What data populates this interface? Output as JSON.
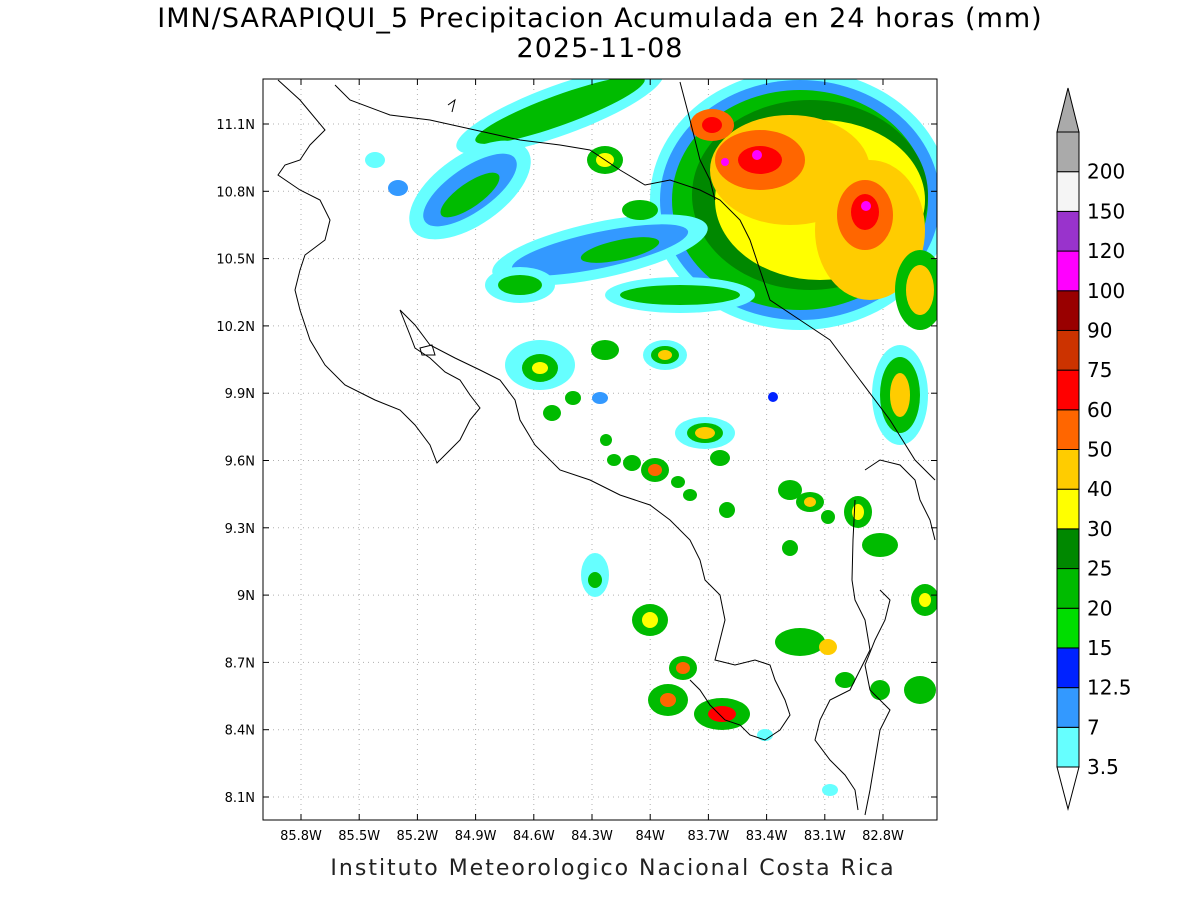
{
  "title": "IMN/SARAPIQUI_5 Precipitacion Acumulada en 24 horas (mm)",
  "date": "2025-11-08",
  "footer": "Instituto Meteorologico Nacional Costa Rica",
  "lat_labels": [
    "11.1N",
    "10.8N",
    "10.5N",
    "10.2N",
    "9.9N",
    "9.6N",
    "9.3N",
    "9N",
    "8.7N",
    "8.4N",
    "8.1N"
  ],
  "lon_labels": [
    "85.8W",
    "85.5W",
    "85.2W",
    "84.9W",
    "84.6W",
    "84.3W",
    "84W",
    "83.7W",
    "83.4W",
    "83.1W",
    "82.8W"
  ],
  "colorbar": {
    "levels": [
      "3.5",
      "7",
      "12.5",
      "15",
      "20",
      "25",
      "30",
      "40",
      "50",
      "60",
      "75",
      "90",
      "100",
      "120",
      "150",
      "200"
    ],
    "colors": [
      "#66ffff",
      "#3399ff",
      "#0022ff",
      "#00dd00",
      "#00bb00",
      "#008800",
      "#ffff00",
      "#ffcc00",
      "#ff6600",
      "#ff0000",
      "#cc3300",
      "#990000",
      "#ff00ff",
      "#9933cc",
      "#f5f5f5",
      "#aaaaaa"
    ]
  }
}
